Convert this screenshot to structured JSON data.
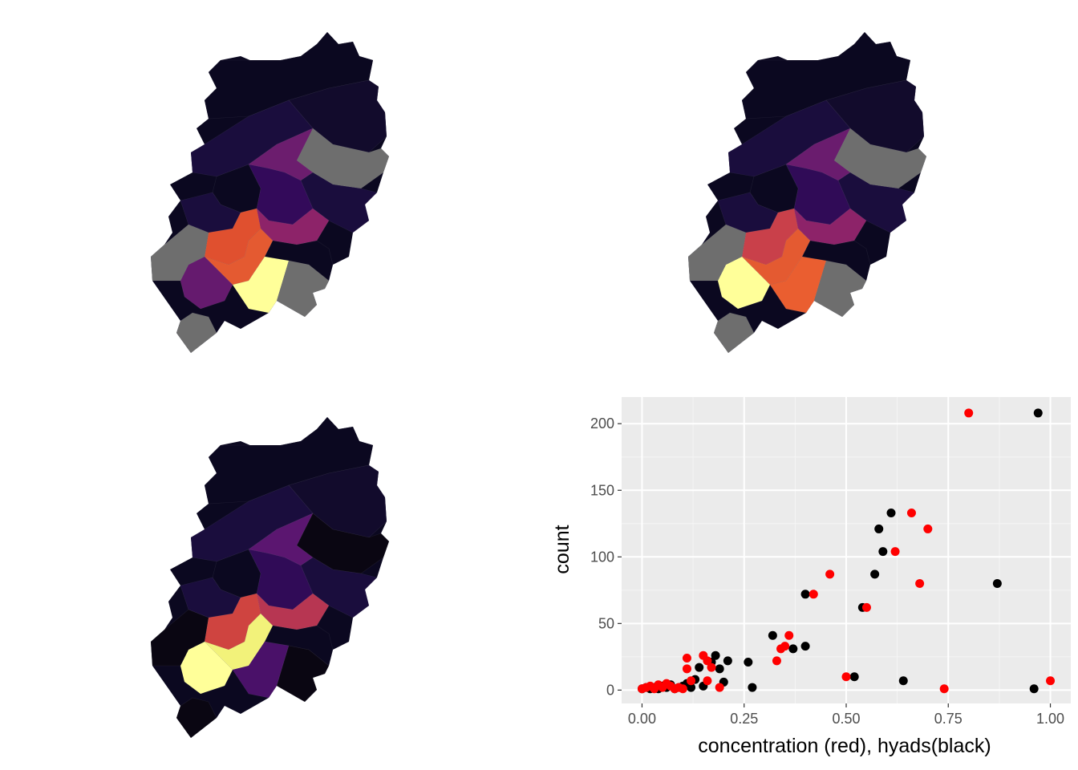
{
  "maps": [
    {
      "name": "map-1",
      "regions": [
        "#0b0820",
        "#120b2c",
        "#1a0d3d",
        "#330a5a",
        "#6c1d6e",
        "#8d2369",
        "#e0502f",
        "#e45a31",
        "#f8f19a",
        "#651a6e",
        "#ffff99",
        "#6e6e6e"
      ]
    },
    {
      "name": "map-2",
      "regions": [
        "#0b0820",
        "#120b2c",
        "#1a0d3d",
        "#300b57",
        "#6a1c6e",
        "#8d2369",
        "#c9404a",
        "#e45a31",
        "#f48f19",
        "#ffff99",
        "#ea5e30",
        "#6e6e6e"
      ]
    },
    {
      "name": "map-3",
      "regions": [
        "#0b0820",
        "#120b2c",
        "#1a0d3d",
        "#300b57",
        "#5b1670",
        "#b73652",
        "#cf4440",
        "#f2f27a",
        "#fbb32c",
        "#ffff99",
        "#4a1169",
        "#0a0612"
      ]
    }
  ],
  "chart_data": {
    "type": "scatter",
    "xlabel": "concentration (red), hyads(black)",
    "ylabel": "count",
    "xlim": [
      -0.05,
      1.05
    ],
    "ylim": [
      -10,
      220
    ],
    "x_ticks": [
      0,
      0.25,
      0.5,
      0.75,
      1.0
    ],
    "x_tick_labels": [
      "0.00",
      "0.25",
      "0.50",
      "0.75",
      "1.00"
    ],
    "y_ticks": [
      0,
      50,
      100,
      150,
      200
    ],
    "y_tick_labels": [
      "0",
      "50",
      "100",
      "150",
      "200"
    ],
    "grid": true,
    "background": "#ebebeb",
    "series": [
      {
        "color": "#000000",
        "points": [
          [
            0.0,
            1
          ],
          [
            0.01,
            2
          ],
          [
            0.02,
            1
          ],
          [
            0.03,
            2
          ],
          [
            0.04,
            1
          ],
          [
            0.05,
            3
          ],
          [
            0.06,
            2
          ],
          [
            0.07,
            4
          ],
          [
            0.08,
            1
          ],
          [
            0.09,
            2
          ],
          [
            0.1,
            3
          ],
          [
            0.11,
            5
          ],
          [
            0.12,
            2
          ],
          [
            0.13,
            8
          ],
          [
            0.14,
            17
          ],
          [
            0.15,
            3
          ],
          [
            0.17,
            21
          ],
          [
            0.18,
            26
          ],
          [
            0.19,
            16
          ],
          [
            0.2,
            6
          ],
          [
            0.21,
            22
          ],
          [
            0.26,
            21
          ],
          [
            0.27,
            2
          ],
          [
            0.32,
            41
          ],
          [
            0.37,
            31
          ],
          [
            0.4,
            72
          ],
          [
            0.4,
            33
          ],
          [
            0.52,
            10
          ],
          [
            0.54,
            62
          ],
          [
            0.57,
            87
          ],
          [
            0.58,
            121
          ],
          [
            0.59,
            104
          ],
          [
            0.61,
            133
          ],
          [
            0.64,
            7
          ],
          [
            0.87,
            80
          ],
          [
            0.96,
            1
          ],
          [
            0.97,
            208
          ]
        ]
      },
      {
        "color": "#ff0000",
        "points": [
          [
            0.0,
            1
          ],
          [
            0.01,
            2
          ],
          [
            0.02,
            3
          ],
          [
            0.03,
            1
          ],
          [
            0.04,
            4
          ],
          [
            0.05,
            2
          ],
          [
            0.06,
            5
          ],
          [
            0.07,
            3
          ],
          [
            0.08,
            1
          ],
          [
            0.09,
            2
          ],
          [
            0.1,
            1
          ],
          [
            0.11,
            24
          ],
          [
            0.11,
            16
          ],
          [
            0.12,
            7
          ],
          [
            0.15,
            26
          ],
          [
            0.16,
            7
          ],
          [
            0.16,
            22
          ],
          [
            0.17,
            17
          ],
          [
            0.19,
            2
          ],
          [
            0.33,
            22
          ],
          [
            0.34,
            31
          ],
          [
            0.35,
            33
          ],
          [
            0.36,
            41
          ],
          [
            0.42,
            72
          ],
          [
            0.46,
            87
          ],
          [
            0.5,
            10
          ],
          [
            0.55,
            62
          ],
          [
            0.62,
            104
          ],
          [
            0.66,
            133
          ],
          [
            0.68,
            80
          ],
          [
            0.7,
            121
          ],
          [
            0.74,
            1
          ],
          [
            0.8,
            208
          ],
          [
            1.0,
            7
          ]
        ]
      }
    ]
  }
}
